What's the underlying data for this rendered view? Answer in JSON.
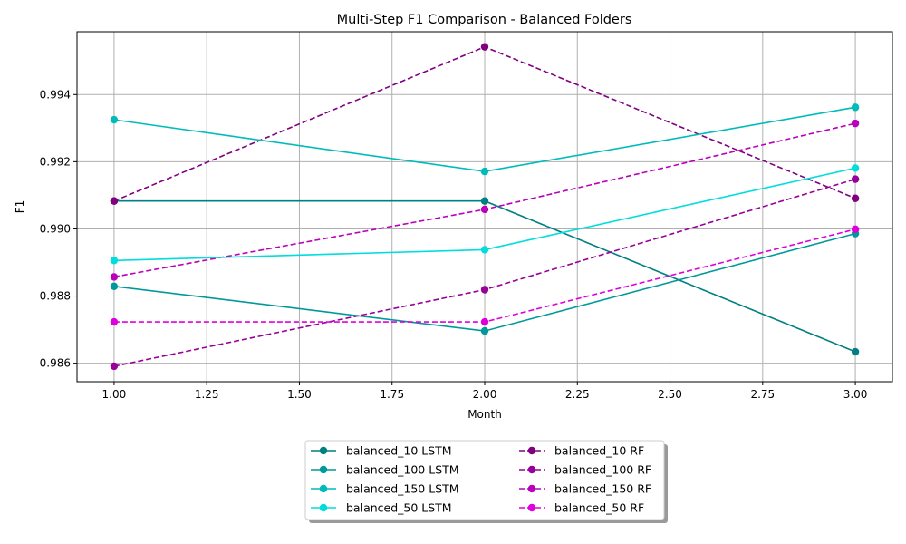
{
  "chart_data": {
    "type": "line",
    "title": "Multi-Step F1 Comparison - Balanced Folders",
    "xlabel": "Month",
    "ylabel": "F1",
    "xlim": [
      0.9,
      3.1
    ],
    "ylim": [
      0.98545,
      0.99587
    ],
    "xticks": [
      "1.00",
      "1.25",
      "1.50",
      "1.75",
      "2.00",
      "2.25",
      "2.50",
      "2.75",
      "3.00"
    ],
    "yticks": [
      "0.986",
      "0.988",
      "0.990",
      "0.992",
      "0.994"
    ],
    "grid": true,
    "legend_position": "bottom-center",
    "x": [
      1,
      2,
      3
    ],
    "series": [
      {
        "name": "balanced_10 LSTM",
        "values": [
          0.99083,
          0.99083,
          0.98634
        ],
        "color": "#008080",
        "dash": "solid"
      },
      {
        "name": "balanced_10 RF",
        "values": [
          0.99083,
          0.99542,
          0.99091
        ],
        "color": "#800080",
        "dash": "dashed"
      },
      {
        "name": "balanced_100 LSTM",
        "values": [
          0.98829,
          0.98696,
          0.98986
        ],
        "color": "#009999",
        "dash": "solid"
      },
      {
        "name": "balanced_100 RF",
        "values": [
          0.98591,
          0.98819,
          0.99148
        ],
        "color": "#990099",
        "dash": "dashed"
      },
      {
        "name": "balanced_150 LSTM",
        "values": [
          0.99325,
          0.99171,
          0.99362
        ],
        "color": "#00BBBB",
        "dash": "solid"
      },
      {
        "name": "balanced_150 RF",
        "values": [
          0.98857,
          0.99058,
          0.99314
        ],
        "color": "#BB00BB",
        "dash": "dashed"
      },
      {
        "name": "balanced_50 LSTM",
        "values": [
          0.98906,
          0.98938,
          0.99181
        ],
        "color": "#00DDDD",
        "dash": "solid"
      },
      {
        "name": "balanced_50 RF",
        "values": [
          0.98723,
          0.98723,
          0.98999
        ],
        "color": "#DD00DD",
        "dash": "dashed"
      }
    ]
  }
}
